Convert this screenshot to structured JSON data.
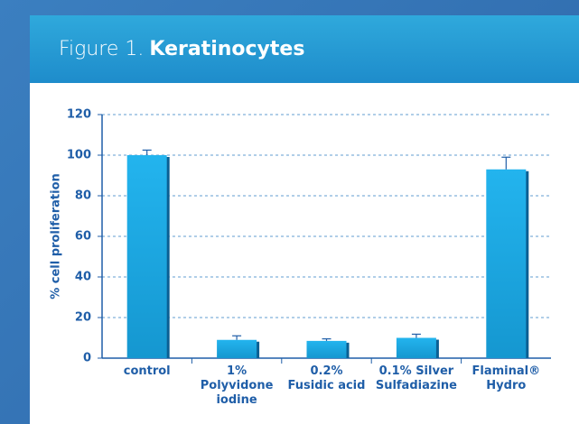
{
  "header": {
    "label": "Figure 1.",
    "title": "Keratinocytes"
  },
  "chart_data": {
    "type": "bar",
    "y_label": "% cell proliferation",
    "categories": [
      "control",
      "1%\nPolyvidone\niodine",
      "0.2%\nFusidic acid",
      "0.1% Silver\nSulfadiazine",
      "Flaminal®\nHydro"
    ],
    "values": [
      100,
      9,
      8.5,
      10,
      93
    ],
    "errors": [
      2.5,
      2,
      1,
      1.8,
      6
    ],
    "color": "#19a6e2",
    "ylim": [
      0,
      120
    ],
    "yticks": [
      0,
      20,
      40,
      60,
      80,
      100,
      120
    ],
    "grid": true
  }
}
